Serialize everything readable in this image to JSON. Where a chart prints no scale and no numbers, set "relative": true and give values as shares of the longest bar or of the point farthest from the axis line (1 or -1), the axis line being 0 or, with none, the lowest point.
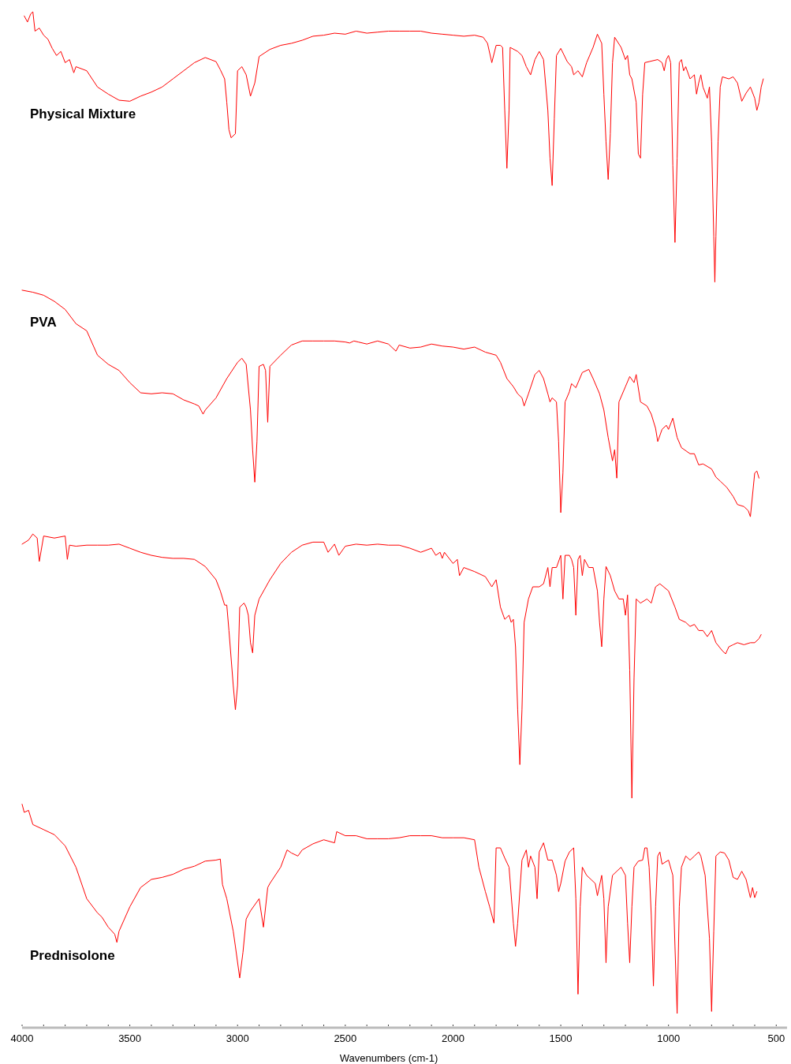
{
  "chart_data": {
    "type": "line",
    "relative": true,
    "xlabel": "Wavenumbers (cm-1)",
    "xlim": [
      4000,
      450
    ],
    "xticks": [
      4000,
      {
        "value": 3900,
        "label": null
      },
      {
        "value": 3800,
        "label": null
      },
      {
        "value": 3700,
        "label": null
      },
      {
        "value": 3600,
        "label": null
      },
      3500,
      {
        "value": 3400,
        "label": null
      },
      {
        "value": 3300,
        "label": null
      },
      {
        "value": 3200,
        "label": null
      },
      {
        "value": 3100,
        "label": null
      },
      3000,
      {
        "value": 2900,
        "label": null
      },
      {
        "value": 2800,
        "label": null
      },
      {
        "value": 2700,
        "label": null
      },
      {
        "value": 2600,
        "label": null
      },
      2500,
      {
        "value": 2400,
        "label": null
      },
      {
        "value": 2300,
        "label": null
      },
      {
        "value": 2200,
        "label": null
      },
      {
        "value": 2100,
        "label": null
      },
      2000,
      {
        "value": 1900,
        "label": null
      },
      {
        "value": 1800,
        "label": null
      },
      {
        "value": 1700,
        "label": null
      },
      {
        "value": 1600,
        "label": null
      },
      1500,
      {
        "value": 1400,
        "label": null
      },
      {
        "value": 1300,
        "label": null
      },
      {
        "value": 1200,
        "label": null
      },
      {
        "value": 1100,
        "label": null
      },
      1000,
      {
        "value": 900,
        "label": null
      },
      {
        "value": 800,
        "label": null
      },
      {
        "value": 700,
        "label": null
      },
      {
        "value": 600,
        "label": null
      },
      500
    ],
    "grid": false,
    "series": [
      {
        "name": "Physical Mixture",
        "color": "#ff0000",
        "x": [
          3990,
          3975,
          3960,
          3950,
          3940,
          3920,
          3900,
          3880,
          3860,
          3840,
          3820,
          3800,
          3780,
          3760,
          3750,
          3700,
          3650,
          3600,
          3550,
          3500,
          3450,
          3400,
          3350,
          3300,
          3250,
          3200,
          3150,
          3100,
          3080,
          3060,
          3050,
          3040,
          3030,
          3010,
          3000,
          2980,
          2960,
          2940,
          2920,
          2900,
          2850,
          2800,
          2750,
          2700,
          2650,
          2600,
          2550,
          2500,
          2450,
          2400,
          2350,
          2300,
          2250,
          2200,
          2150,
          2100,
          2050,
          2000,
          1950,
          1900,
          1860,
          1840,
          1820,
          1800,
          1780,
          1770,
          1760,
          1750,
          1740,
          1735,
          1700,
          1680,
          1660,
          1640,
          1620,
          1600,
          1580,
          1560,
          1550,
          1540,
          1530,
          1520,
          1500,
          1470,
          1450,
          1440,
          1420,
          1400,
          1380,
          1350,
          1330,
          1310,
          1300,
          1290,
          1280,
          1270,
          1260,
          1250,
          1220,
          1200,
          1190,
          1180,
          1170,
          1150,
          1140,
          1130,
          1120,
          1110,
          1090,
          1050,
          1030,
          1020,
          1010,
          1000,
          990,
          980,
          970,
          960,
          950,
          940,
          930,
          920,
          900,
          880,
          870,
          860,
          850,
          840,
          820,
          810,
          800,
          790,
          785,
          780,
          770,
          760,
          750,
          720,
          700,
          680,
          660,
          640,
          620,
          600,
          590,
          580,
          570,
          560
        ],
        "values": [
          0.996,
          0.99,
          0.998,
          1,
          0.981,
          0.984,
          0.977,
          0.973,
          0.964,
          0.957,
          0.961,
          0.95,
          0.953,
          0.94,
          0.946,
          0.942,
          0.926,
          0.919,
          0.913,
          0.912,
          0.917,
          0.921,
          0.926,
          0.934,
          0.942,
          0.95,
          0.955,
          0.951,
          0.943,
          0.934,
          0.911,
          0.884,
          0.876,
          0.88,
          0.942,
          0.946,
          0.938,
          0.917,
          0.93,
          0.956,
          0.963,
          0.967,
          0.969,
          0.972,
          0.976,
          0.977,
          0.979,
          0.978,
          0.981,
          0.979,
          0.98,
          0.981,
          0.981,
          0.981,
          0.981,
          0.979,
          0.978,
          0.977,
          0.976,
          0.977,
          0.975,
          0.969,
          0.95,
          0.967,
          0.967,
          0.965,
          0.903,
          0.846,
          0.903,
          0.965,
          0.961,
          0.957,
          0.946,
          0.938,
          0.953,
          0.961,
          0.953,
          0.903,
          0.856,
          0.829,
          0.895,
          0.957,
          0.964,
          0.951,
          0.946,
          0.938,
          0.942,
          0.936,
          0.95,
          0.965,
          0.978,
          0.969,
          0.919,
          0.872,
          0.835,
          0.88,
          0.95,
          0.975,
          0.965,
          0.953,
          0.957,
          0.938,
          0.934,
          0.911,
          0.86,
          0.856,
          0.919,
          0.95,
          0.951,
          0.953,
          0.95,
          0.942,
          0.953,
          0.957,
          0.95,
          0.849,
          0.773,
          0.856,
          0.95,
          0.953,
          0.942,
          0.946,
          0.934,
          0.938,
          0.919,
          0.93,
          0.938,
          0.926,
          0.915,
          0.926,
          0.872,
          0.779,
          0.734,
          0.779,
          0.872,
          0.926,
          0.936,
          0.934,
          0.936,
          0.93,
          0.912,
          0.92,
          0.926,
          0.915,
          0.903,
          0.911,
          0.926,
          0.934
        ]
      },
      {
        "name": "PVA",
        "color": "#ff0000",
        "x": [
          4000,
          3950,
          3900,
          3850,
          3800,
          3750,
          3700,
          3650,
          3600,
          3550,
          3500,
          3450,
          3400,
          3350,
          3300,
          3250,
          3200,
          3180,
          3160,
          3150,
          3100,
          3050,
          3000,
          2980,
          2960,
          2940,
          2930,
          2920,
          2910,
          2900,
          2880,
          2870,
          2860,
          2850,
          2800,
          2750,
          2700,
          2650,
          2600,
          2550,
          2500,
          2480,
          2460,
          2440,
          2400,
          2350,
          2300,
          2265,
          2250,
          2200,
          2150,
          2100,
          2050,
          2000,
          1950,
          1900,
          1850,
          1800,
          1780,
          1750,
          1720,
          1700,
          1680,
          1670,
          1650,
          1620,
          1600,
          1580,
          1560,
          1550,
          1540,
          1520,
          1510,
          1500,
          1490,
          1480,
          1460,
          1450,
          1430,
          1400,
          1370,
          1350,
          1320,
          1300,
          1280,
          1260,
          1250,
          1240,
          1230,
          1200,
          1180,
          1160,
          1150,
          1130,
          1100,
          1080,
          1060,
          1050,
          1030,
          1010,
          1000,
          980,
          960,
          940,
          900,
          880,
          860,
          840,
          800,
          780,
          760,
          730,
          700,
          680,
          650,
          630,
          620,
          600,
          590,
          580
        ],
        "values": [
          0.726,
          0.724,
          0.721,
          0.715,
          0.707,
          0.693,
          0.686,
          0.662,
          0.653,
          0.647,
          0.635,
          0.625,
          0.624,
          0.625,
          0.624,
          0.618,
          0.614,
          0.612,
          0.604,
          0.608,
          0.62,
          0.639,
          0.655,
          0.659,
          0.653,
          0.608,
          0.569,
          0.537,
          0.577,
          0.651,
          0.653,
          0.647,
          0.596,
          0.651,
          0.662,
          0.672,
          0.676,
          0.676,
          0.676,
          0.676,
          0.675,
          0.674,
          0.676,
          0.675,
          0.673,
          0.676,
          0.673,
          0.666,
          0.672,
          0.669,
          0.67,
          0.673,
          0.671,
          0.67,
          0.668,
          0.67,
          0.665,
          0.662,
          0.655,
          0.639,
          0.631,
          0.624,
          0.62,
          0.612,
          0.624,
          0.643,
          0.647,
          0.639,
          0.624,
          0.616,
          0.62,
          0.616,
          0.577,
          0.507,
          0.546,
          0.616,
          0.626,
          0.634,
          0.63,
          0.645,
          0.648,
          0.639,
          0.624,
          0.608,
          0.581,
          0.558,
          0.569,
          0.541,
          0.616,
          0.631,
          0.641,
          0.635,
          0.643,
          0.616,
          0.612,
          0.604,
          0.59,
          0.577,
          0.589,
          0.593,
          0.589,
          0.6,
          0.581,
          0.571,
          0.565,
          0.565,
          0.554,
          0.555,
          0.55,
          0.542,
          0.538,
          0.532,
          0.523,
          0.515,
          0.513,
          0.509,
          0.503,
          0.546,
          0.548,
          0.541
        ]
      },
      {
        "color": "#ff0000",
        "x": [
          4000,
          3970,
          3950,
          3930,
          3920,
          3900,
          3850,
          3800,
          3790,
          3780,
          3750,
          3700,
          3650,
          3600,
          3550,
          3500,
          3450,
          3400,
          3350,
          3300,
          3250,
          3200,
          3150,
          3100,
          3080,
          3060,
          3050,
          3040,
          3020,
          3010,
          3000,
          2990,
          2970,
          2960,
          2950,
          2940,
          2930,
          2920,
          2900,
          2850,
          2800,
          2750,
          2700,
          2650,
          2600,
          2580,
          2550,
          2530,
          2500,
          2450,
          2400,
          2350,
          2300,
          2250,
          2200,
          2150,
          2100,
          2080,
          2060,
          2050,
          2040,
          2000,
          1980,
          1970,
          1950,
          1900,
          1850,
          1820,
          1800,
          1780,
          1760,
          1740,
          1730,
          1720,
          1710,
          1700,
          1690,
          1680,
          1670,
          1650,
          1630,
          1600,
          1580,
          1560,
          1550,
          1540,
          1520,
          1500,
          1490,
          1480,
          1460,
          1450,
          1440,
          1430,
          1420,
          1410,
          1400,
          1390,
          1370,
          1350,
          1330,
          1320,
          1310,
          1300,
          1290,
          1270,
          1250,
          1230,
          1210,
          1200,
          1190,
          1180,
          1170,
          1160,
          1150,
          1130,
          1100,
          1080,
          1060,
          1040,
          1000,
          970,
          950,
          920,
          900,
          880,
          860,
          840,
          820,
          800,
          780,
          750,
          735,
          720,
          700,
          680,
          650,
          620,
          600,
          580,
          570
        ],
        "values": [
          0.476,
          0.48,
          0.486,
          0.482,
          0.459,
          0.484,
          0.482,
          0.484,
          0.461,
          0.475,
          0.474,
          0.475,
          0.475,
          0.475,
          0.476,
          0.472,
          0.468,
          0.465,
          0.463,
          0.462,
          0.462,
          0.461,
          0.454,
          0.441,
          0.43,
          0.416,
          0.416,
          0.391,
          0.337,
          0.313,
          0.337,
          0.414,
          0.418,
          0.414,
          0.406,
          0.379,
          0.369,
          0.406,
          0.422,
          0.441,
          0.457,
          0.468,
          0.475,
          0.478,
          0.478,
          0.468,
          0.476,
          0.465,
          0.474,
          0.476,
          0.475,
          0.476,
          0.475,
          0.475,
          0.472,
          0.468,
          0.472,
          0.465,
          0.468,
          0.462,
          0.468,
          0.457,
          0.461,
          0.445,
          0.453,
          0.449,
          0.444,
          0.434,
          0.441,
          0.414,
          0.402,
          0.406,
          0.399,
          0.402,
          0.375,
          0.313,
          0.259,
          0.313,
          0.399,
          0.422,
          0.434,
          0.434,
          0.437,
          0.453,
          0.434,
          0.453,
          0.453,
          0.465,
          0.422,
          0.465,
          0.465,
          0.461,
          0.453,
          0.406,
          0.461,
          0.465,
          0.445,
          0.461,
          0.453,
          0.453,
          0.43,
          0.399,
          0.375,
          0.422,
          0.454,
          0.445,
          0.43,
          0.422,
          0.422,
          0.406,
          0.426,
          0.352,
          0.226,
          0.344,
          0.422,
          0.418,
          0.422,
          0.418,
          0.434,
          0.437,
          0.43,
          0.414,
          0.402,
          0.399,
          0.395,
          0.397,
          0.391,
          0.391,
          0.385,
          0.391,
          0.379,
          0.371,
          0.368,
          0.375,
          0.377,
          0.379,
          0.377,
          0.379,
          0.379,
          0.383,
          0.387
        ]
      },
      {
        "name": "Prednisolone",
        "color": "#ff0000",
        "x": [
          4000,
          3990,
          3970,
          3950,
          3900,
          3850,
          3800,
          3750,
          3700,
          3650,
          3630,
          3600,
          3570,
          3560,
          3550,
          3500,
          3450,
          3400,
          3350,
          3300,
          3250,
          3200,
          3150,
          3100,
          3080,
          3070,
          3050,
          3020,
          3010,
          2990,
          2975,
          2960,
          2940,
          2900,
          2880,
          2860,
          2850,
          2800,
          2770,
          2750,
          2720,
          2700,
          2650,
          2600,
          2550,
          2540,
          2500,
          2450,
          2400,
          2350,
          2300,
          2250,
          2200,
          2150,
          2100,
          2050,
          2000,
          1950,
          1900,
          1880,
          1850,
          1830,
          1810,
          1800,
          1780,
          1760,
          1740,
          1720,
          1710,
          1700,
          1680,
          1660,
          1650,
          1640,
          1620,
          1610,
          1600,
          1580,
          1560,
          1540,
          1520,
          1510,
          1500,
          1480,
          1460,
          1440,
          1430,
          1420,
          1410,
          1400,
          1380,
          1360,
          1340,
          1330,
          1310,
          1300,
          1290,
          1280,
          1260,
          1240,
          1220,
          1200,
          1190,
          1180,
          1170,
          1160,
          1140,
          1120,
          1110,
          1100,
          1090,
          1080,
          1070,
          1060,
          1050,
          1040,
          1030,
          1000,
          980,
          970,
          960,
          950,
          940,
          920,
          900,
          880,
          860,
          850,
          830,
          810,
          800,
          790,
          780,
          760,
          740,
          720,
          700,
          680,
          660,
          640,
          620,
          610,
          600,
          590
        ],
        "values": [
          0.22,
          0.212,
          0.214,
          0.2,
          0.195,
          0.19,
          0.179,
          0.158,
          0.127,
          0.113,
          0.109,
          0.099,
          0.092,
          0.084,
          0.095,
          0.119,
          0.138,
          0.146,
          0.148,
          0.151,
          0.156,
          0.159,
          0.164,
          0.165,
          0.166,
          0.141,
          0.127,
          0.095,
          0.08,
          0.049,
          0.074,
          0.107,
          0.115,
          0.127,
          0.099,
          0.138,
          0.142,
          0.158,
          0.175,
          0.172,
          0.169,
          0.175,
          0.181,
          0.185,
          0.182,
          0.193,
          0.189,
          0.189,
          0.186,
          0.186,
          0.186,
          0.187,
          0.189,
          0.189,
          0.189,
          0.187,
          0.187,
          0.187,
          0.185,
          0.158,
          0.134,
          0.119,
          0.103,
          0.177,
          0.177,
          0.167,
          0.158,
          0.103,
          0.08,
          0.103,
          0.165,
          0.175,
          0.158,
          0.169,
          0.158,
          0.127,
          0.173,
          0.182,
          0.165,
          0.165,
          0.15,
          0.134,
          0.142,
          0.164,
          0.173,
          0.177,
          0.127,
          0.033,
          0.119,
          0.158,
          0.15,
          0.146,
          0.142,
          0.13,
          0.15,
          0.127,
          0.064,
          0.119,
          0.15,
          0.154,
          0.158,
          0.15,
          0.103,
          0.064,
          0.119,
          0.158,
          0.164,
          0.165,
          0.177,
          0.177,
          0.158,
          0.111,
          0.041,
          0.119,
          0.169,
          0.173,
          0.161,
          0.165,
          0.15,
          0.08,
          0.014,
          0.119,
          0.158,
          0.169,
          0.165,
          0.169,
          0.173,
          0.169,
          0.15,
          0.088,
          0.016,
          0.095,
          0.169,
          0.173,
          0.172,
          0.165,
          0.148,
          0.146,
          0.154,
          0.146,
          0.128,
          0.138,
          0.128,
          0.134
        ]
      }
    ]
  }
}
